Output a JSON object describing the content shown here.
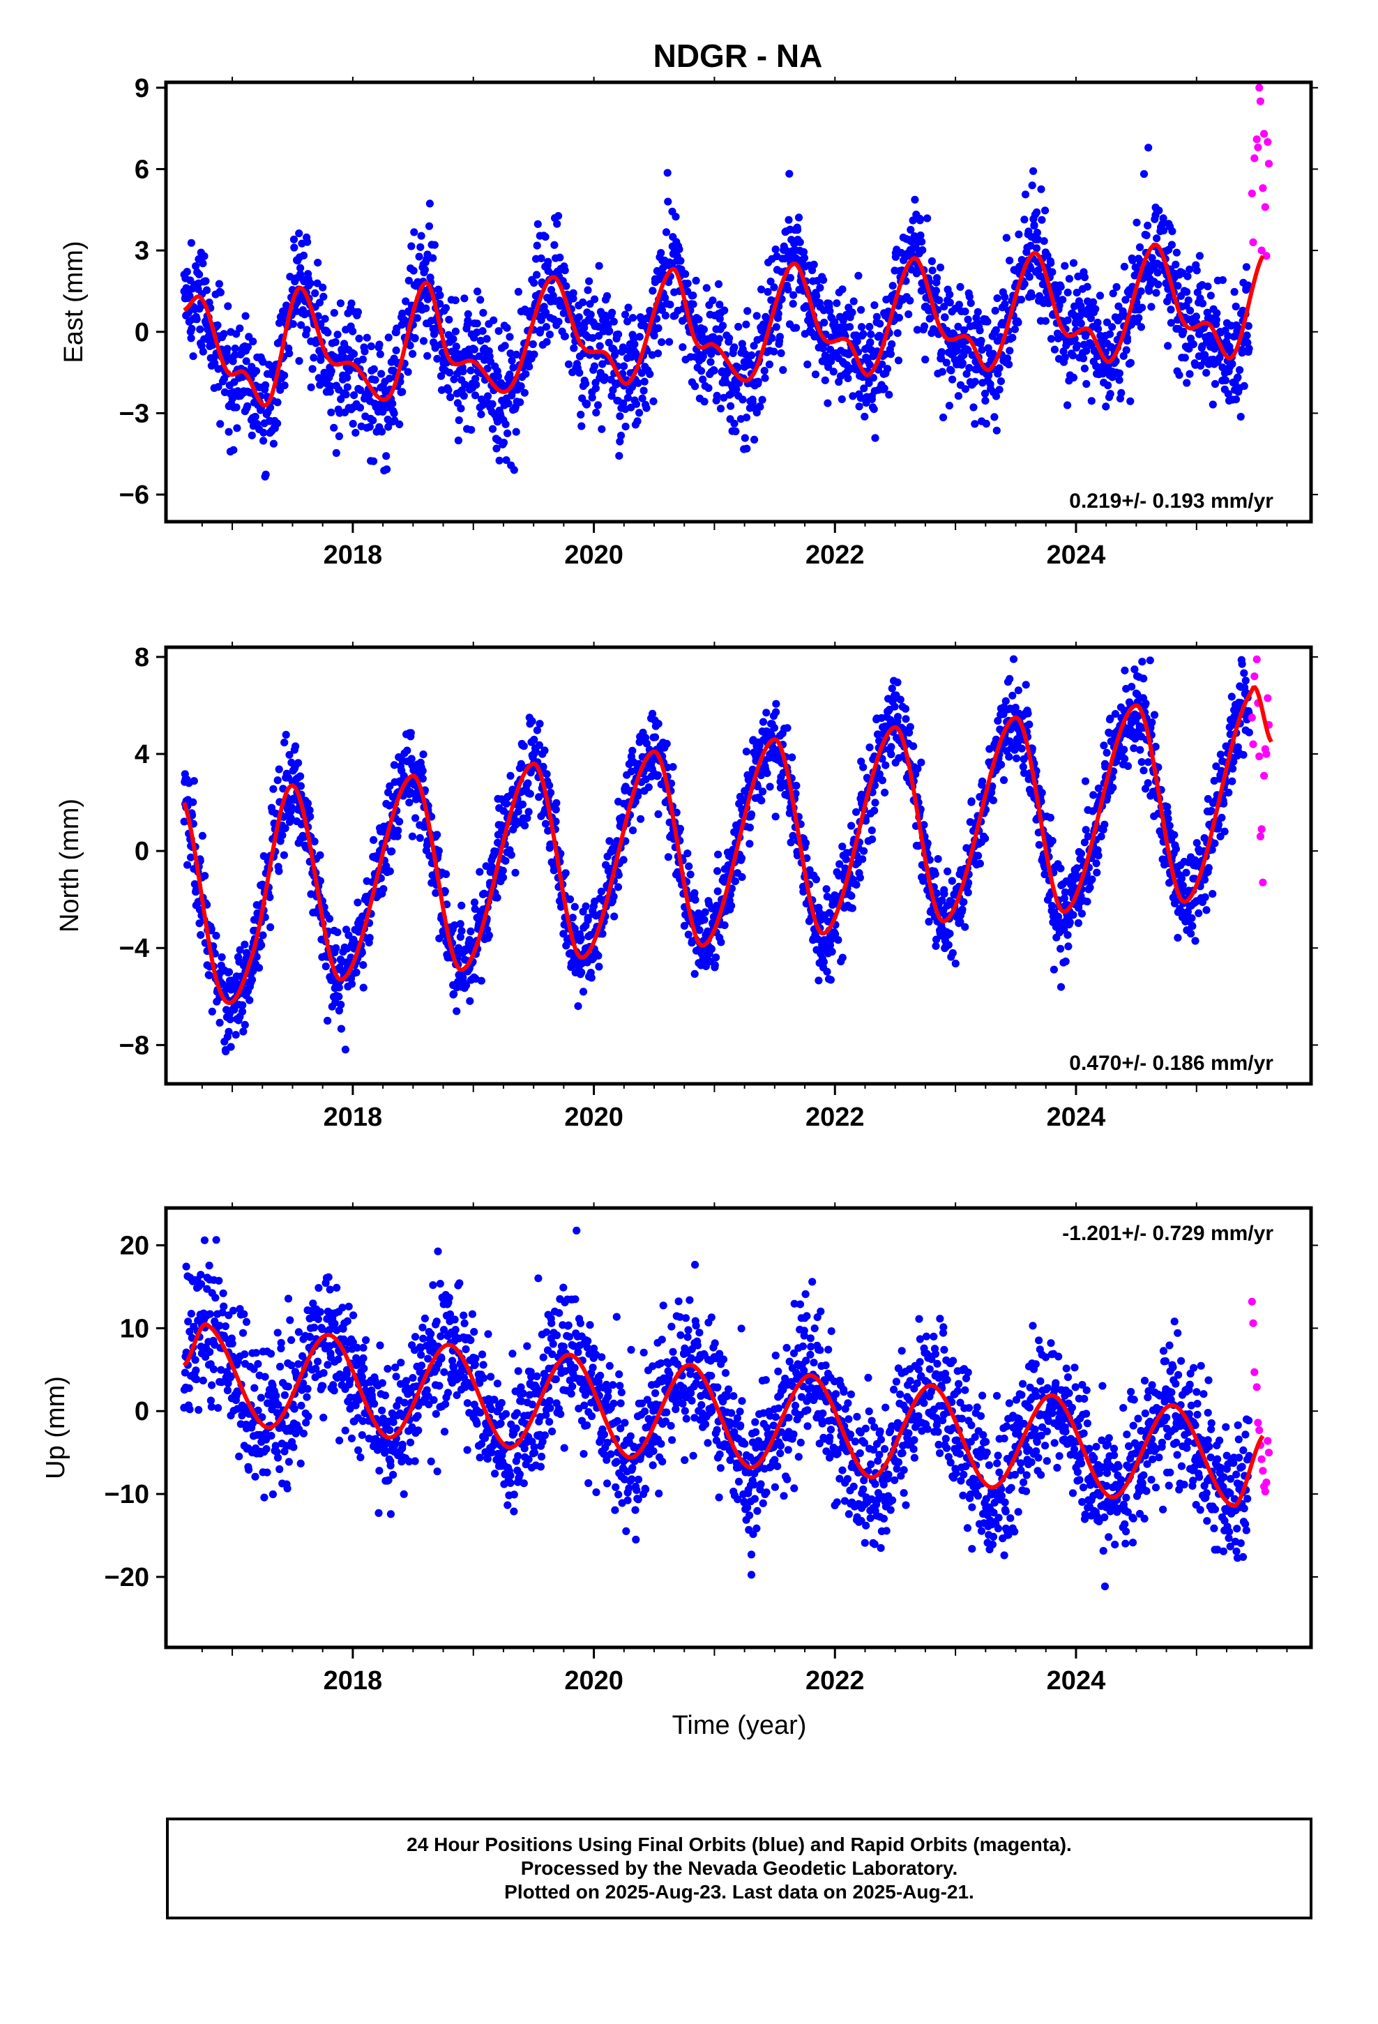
{
  "figure_title": "NDGR - NA",
  "xlabel": "Time (year)",
  "colors": {
    "final": "#0000ff",
    "rapid": "#ff00ff",
    "fit": "#ff0000",
    "axes": "#000000"
  },
  "footer": {
    "line1": "24 Hour Positions Using Final Orbits (blue) and Rapid Orbits (magenta).",
    "line2": "Processed by the Nevada Geodetic Laboratory.",
    "line3": "Plotted on 2025-Aug-23. Last data on 2025-Aug-21."
  },
  "chart_data": [
    {
      "type": "scatter",
      "name": "east",
      "ylabel": "East (mm)",
      "rate_label": "0.219+/- 0.193 mm/yr",
      "rate_position": "bottom-right",
      "xlim": [
        2016.45,
        2025.95
      ],
      "ylim": [
        -7,
        9.2
      ],
      "xticks": [
        2018,
        2020,
        2022,
        2024
      ],
      "yticks": [
        -6,
        -3,
        0,
        3,
        6,
        9
      ],
      "ytick_labels": [
        "−6",
        "−3",
        "0",
        "3",
        "6",
        "9"
      ],
      "fit_knots": {
        "x": [
          2016.6,
          2016.75,
          2016.95,
          2017.1,
          2017.3,
          2017.55,
          2017.8,
          2018.0,
          2018.3,
          2018.6,
          2018.8,
          2019.0,
          2019.3,
          2019.65,
          2019.9,
          2020.1,
          2020.3,
          2020.65,
          2020.85,
          2021.0,
          2021.3,
          2021.65,
          2021.9,
          2022.1,
          2022.3,
          2022.65,
          2022.9,
          2023.1,
          2023.3,
          2023.65,
          2023.9,
          2024.1,
          2024.3,
          2024.65,
          2024.9,
          2025.1,
          2025.3,
          2025.55
        ],
        "y": [
          0.8,
          1.2,
          -1.4,
          -1.5,
          -2.6,
          1.6,
          -1.0,
          -1.2,
          -2.4,
          1.8,
          -1.0,
          -1.1,
          -2.1,
          2.0,
          -0.5,
          -0.8,
          -1.8,
          2.3,
          -0.4,
          -0.5,
          -1.7,
          2.5,
          -0.2,
          -0.3,
          -1.5,
          2.7,
          -0.1,
          -0.2,
          -1.3,
          2.9,
          0.0,
          0.1,
          -1.0,
          3.2,
          0.3,
          0.3,
          -0.9,
          2.8
        ]
      },
      "scatter_noise_sd": 1.1,
      "rapid_x_range": [
        2025.45,
        2025.62
      ],
      "rapid_points": [
        {
          "x": 2025.46,
          "y": 5.1
        },
        {
          "x": 2025.47,
          "y": 3.3
        },
        {
          "x": 2025.48,
          "y": 6.4
        },
        {
          "x": 2025.5,
          "y": 7.1
        },
        {
          "x": 2025.51,
          "y": 6.8
        },
        {
          "x": 2025.52,
          "y": 9.0
        },
        {
          "x": 2025.53,
          "y": 8.5
        },
        {
          "x": 2025.54,
          "y": 3.0
        },
        {
          "x": 2025.55,
          "y": 5.3
        },
        {
          "x": 2025.56,
          "y": 7.3
        },
        {
          "x": 2025.57,
          "y": 4.6
        },
        {
          "x": 2025.58,
          "y": 2.8
        },
        {
          "x": 2025.59,
          "y": 7.0
        },
        {
          "x": 2025.6,
          "y": 6.2
        }
      ]
    },
    {
      "type": "scatter",
      "name": "north",
      "ylabel": "North (mm)",
      "rate_label": "0.470+/- 0.186 mm/yr",
      "rate_position": "bottom-right",
      "xlim": [
        2016.45,
        2025.95
      ],
      "ylim": [
        -9.6,
        8.4
      ],
      "xticks": [
        2018,
        2020,
        2022,
        2024
      ],
      "yticks": [
        -8,
        -4,
        0,
        4,
        8
      ],
      "ytick_labels": [
        "−8",
        "−4",
        "0",
        "4",
        "8"
      ],
      "fit_knots": {
        "x": [
          2016.6,
          2016.9,
          2017.15,
          2017.5,
          2017.9,
          2018.5,
          2018.9,
          2019.5,
          2019.9,
          2020.5,
          2020.9,
          2021.5,
          2021.9,
          2022.5,
          2022.9,
          2023.5,
          2023.9,
          2024.5,
          2024.9,
          2025.45,
          2025.62
        ],
        "y": [
          2.0,
          -5.8,
          -4.5,
          2.7,
          -5.3,
          3.1,
          -4.9,
          3.6,
          -4.4,
          4.1,
          -3.9,
          4.6,
          -3.4,
          5.1,
          -2.9,
          5.5,
          -2.5,
          6.0,
          -2.1,
          6.5,
          4.5
        ]
      },
      "scatter_noise_sd": 0.95,
      "rapid_x_range": [
        2025.45,
        2025.62
      ],
      "rapid_points": [
        {
          "x": 2025.46,
          "y": 5.5
        },
        {
          "x": 2025.47,
          "y": 4.4
        },
        {
          "x": 2025.48,
          "y": 7.2
        },
        {
          "x": 2025.5,
          "y": 7.9
        },
        {
          "x": 2025.51,
          "y": 6.1
        },
        {
          "x": 2025.52,
          "y": 3.9
        },
        {
          "x": 2025.53,
          "y": 0.6
        },
        {
          "x": 2025.54,
          "y": 0.9
        },
        {
          "x": 2025.55,
          "y": -1.3
        },
        {
          "x": 2025.56,
          "y": 3.1
        },
        {
          "x": 2025.57,
          "y": 4.2
        },
        {
          "x": 2025.58,
          "y": 4.0
        },
        {
          "x": 2025.59,
          "y": 6.3
        },
        {
          "x": 2025.6,
          "y": 5.2
        }
      ]
    },
    {
      "type": "scatter",
      "name": "up",
      "ylabel": "Up (mm)",
      "rate_label": "-1.201+/- 0.729 mm/yr",
      "rate_position": "top-right",
      "xlim": [
        2016.45,
        2025.95
      ],
      "ylim": [
        -28.5,
        24.5
      ],
      "xticks": [
        2018,
        2020,
        2022,
        2024
      ],
      "yticks": [
        -20,
        -10,
        0,
        10,
        20
      ],
      "ytick_labels": [
        "−20",
        "−10",
        "0",
        "10",
        "20"
      ],
      "fit_knots": {
        "x": [
          2016.6,
          2016.8,
          2017.3,
          2017.8,
          2018.3,
          2018.8,
          2019.3,
          2019.8,
          2020.3,
          2020.8,
          2021.3,
          2021.8,
          2022.3,
          2022.8,
          2023.3,
          2023.8,
          2024.3,
          2024.8,
          2025.3,
          2025.55
        ],
        "y": [
          5.5,
          10.3,
          -2.0,
          9.2,
          -3.2,
          8.0,
          -4.4,
          6.8,
          -5.6,
          5.6,
          -6.8,
          4.3,
          -8.0,
          3.1,
          -9.2,
          1.9,
          -10.4,
          0.7,
          -11.4,
          -3.0
        ]
      },
      "scatter_noise_sd": 4.2,
      "rapid_x_range": [
        2025.45,
        2025.62
      ],
      "rapid_points": [
        {
          "x": 2025.46,
          "y": 13.2
        },
        {
          "x": 2025.47,
          "y": 10.6
        },
        {
          "x": 2025.48,
          "y": 4.7
        },
        {
          "x": 2025.5,
          "y": 2.9
        },
        {
          "x": 2025.51,
          "y": -1.4
        },
        {
          "x": 2025.52,
          "y": -2.3
        },
        {
          "x": 2025.53,
          "y": -4.1
        },
        {
          "x": 2025.54,
          "y": -5.8
        },
        {
          "x": 2025.55,
          "y": -7.2
        },
        {
          "x": 2025.56,
          "y": -9.1
        },
        {
          "x": 2025.57,
          "y": -9.7
        },
        {
          "x": 2025.58,
          "y": -8.6
        },
        {
          "x": 2025.59,
          "y": -3.6
        },
        {
          "x": 2025.6,
          "y": -5.0
        }
      ]
    }
  ]
}
